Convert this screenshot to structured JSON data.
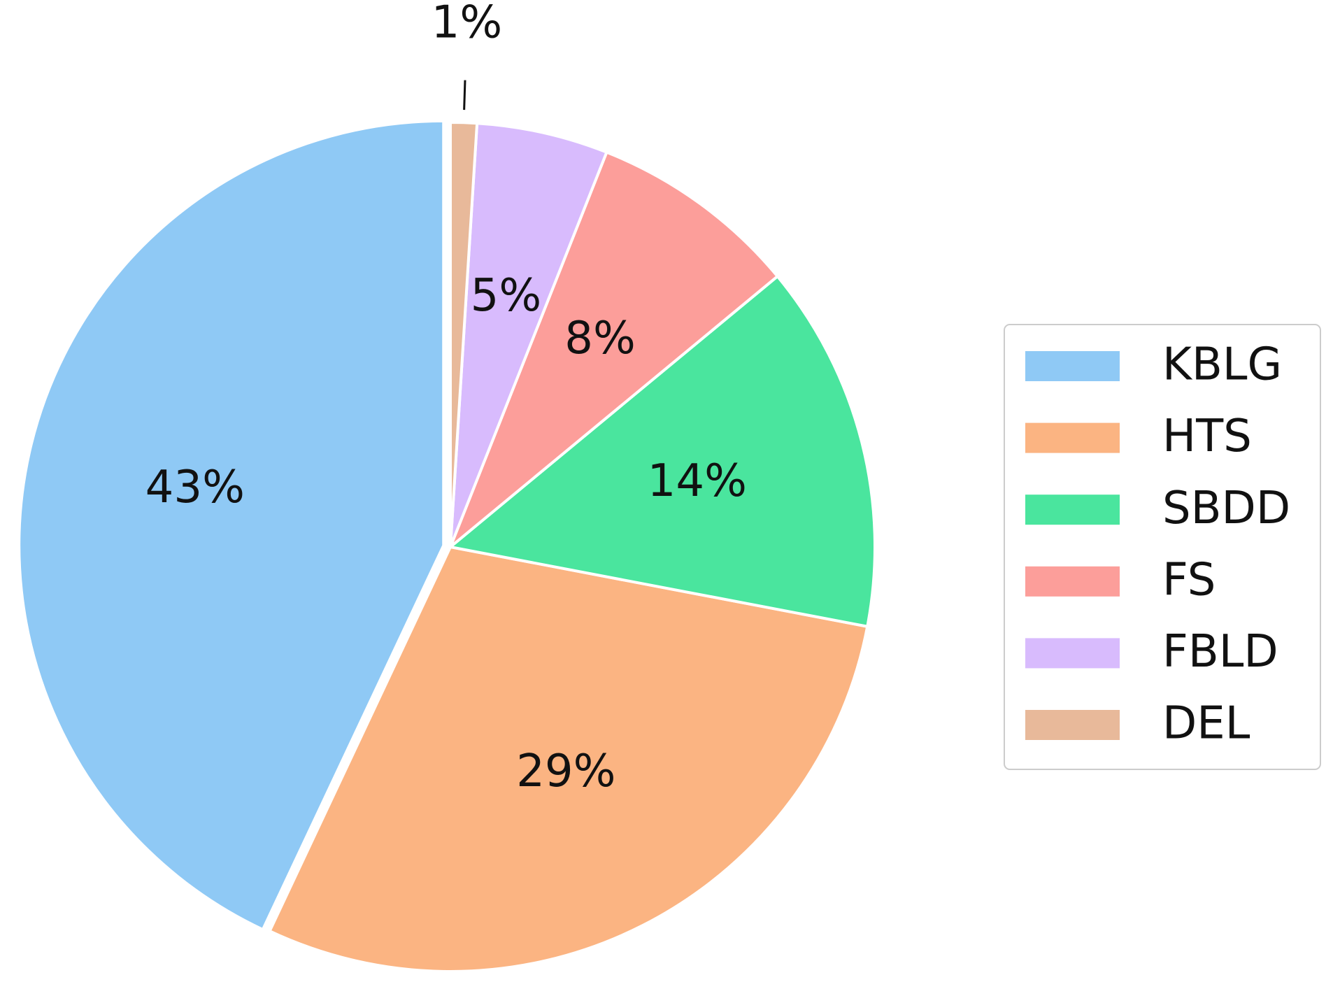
{
  "chart_data": {
    "type": "pie",
    "categories": [
      "KBLG",
      "HTS",
      "SBDD",
      "FS",
      "FBLD",
      "DEL"
    ],
    "values": [
      43,
      29,
      14,
      8,
      5,
      1
    ],
    "value_labels": [
      "43%",
      "29%",
      "14%",
      "8%",
      "5%",
      "1%"
    ],
    "colors": [
      "#8fc9f5",
      "#fbb482",
      "#4ae59e",
      "#fc9e9a",
      "#d8bbfd",
      "#e8b99a"
    ],
    "legend": "right"
  }
}
